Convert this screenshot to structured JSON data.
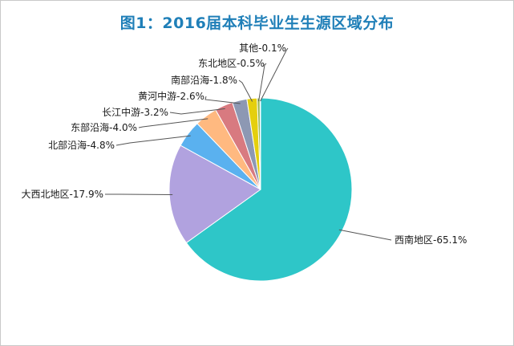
{
  "chart_data": {
    "type": "pie",
    "title": "图1：2016届本科毕业生生源区域分布",
    "start_angle_deg": 0,
    "direction": "clockwise",
    "slices": [
      {
        "name": "西南地区",
        "value": 65.1,
        "label": "西南地区-65.1%",
        "color": "#2ec6c8"
      },
      {
        "name": "大西北地区",
        "value": 17.9,
        "label": "大西北地区-17.9%",
        "color": "#b1a2df"
      },
      {
        "name": "北部沿海",
        "value": 4.8,
        "label": "北部沿海-4.8%",
        "color": "#5ab1ef"
      },
      {
        "name": "东部沿海",
        "value": 4.0,
        "label": "东部沿海-4.0%",
        "color": "#ffb980"
      },
      {
        "name": "长江中游",
        "value": 3.2,
        "label": "长江中游-3.2%",
        "color": "#d87a80"
      },
      {
        "name": "黄河中游",
        "value": 2.6,
        "label": "黄河中游-2.6%",
        "color": "#8d98b3"
      },
      {
        "name": "南部沿海",
        "value": 1.8,
        "label": "南部沿海-1.8%",
        "color": "#e5cf0d"
      },
      {
        "name": "东北地区",
        "value": 0.5,
        "label": "东北地区-0.5%",
        "color": "#97b552"
      },
      {
        "name": "其他",
        "value": 0.1,
        "label": "其他-0.1%",
        "color": "#95706d"
      }
    ],
    "legend": "none"
  }
}
